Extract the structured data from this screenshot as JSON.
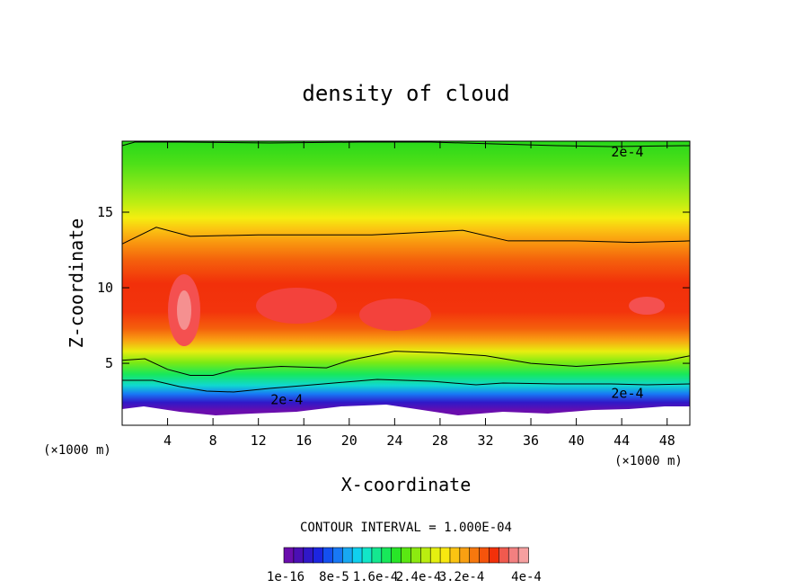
{
  "chart_data": {
    "type": "contour",
    "title": "density of cloud",
    "xlabel": "X-coordinate",
    "ylabel": "Z-coordinate",
    "x_unit": "(×1000 m)",
    "y_unit": "(×1000 m)",
    "xlim": [
      0,
      50
    ],
    "ylim": [
      0.9,
      19.7
    ],
    "x_ticks": [
      4,
      8,
      12,
      16,
      20,
      24,
      28,
      32,
      36,
      40,
      44,
      48
    ],
    "y_ticks": [
      5,
      10,
      15
    ],
    "contour_interval_text": "CONTOUR INTERVAL = 1.000E-04",
    "contour_line_labels": [
      {
        "text": "2e-4",
        "x": 44.5,
        "y": 19.0
      },
      {
        "text": "2e-4",
        "x": 14.5,
        "y": 2.6
      },
      {
        "text": "2e-4",
        "x": 44.5,
        "y": 3.0
      }
    ],
    "contour_2e4_upper": {
      "x": [
        0,
        3,
        6,
        12,
        22,
        30,
        34,
        40,
        45,
        50
      ],
      "y": [
        12.9,
        14.0,
        13.4,
        13.5,
        13.5,
        13.8,
        13.1,
        13.1,
        13.0,
        13.1
      ]
    },
    "contour_2e4_lower": {
      "x": [
        0,
        2,
        4,
        6,
        8,
        10,
        14,
        18,
        20,
        24,
        28,
        32,
        36,
        40,
        44,
        48,
        50
      ],
      "y": [
        5.2,
        5.3,
        4.6,
        4.2,
        4.2,
        4.6,
        4.8,
        4.7,
        5.2,
        5.8,
        5.7,
        5.5,
        5.0,
        4.8,
        5.0,
        5.2,
        5.5
      ]
    },
    "colorbar": {
      "colors": [
        "#6a0dad",
        "#4b0fb4",
        "#3018c8",
        "#1c25e0",
        "#1450f0",
        "#1878f5",
        "#18a8f2",
        "#10d0ee",
        "#12e6c8",
        "#14e890",
        "#18e85a",
        "#28e628",
        "#5ae812",
        "#8cea10",
        "#baee10",
        "#e4f010",
        "#f8e810",
        "#fbc412",
        "#f9a012",
        "#f7780e",
        "#f5540c",
        "#f2300a",
        "#f05a4e",
        "#f38080",
        "#f6a0a0"
      ],
      "tick_labels": [
        "1e-16",
        "8e-5",
        "1.6e-4",
        "2.4e-4",
        "3.2e-4",
        "4e-4"
      ]
    }
  }
}
